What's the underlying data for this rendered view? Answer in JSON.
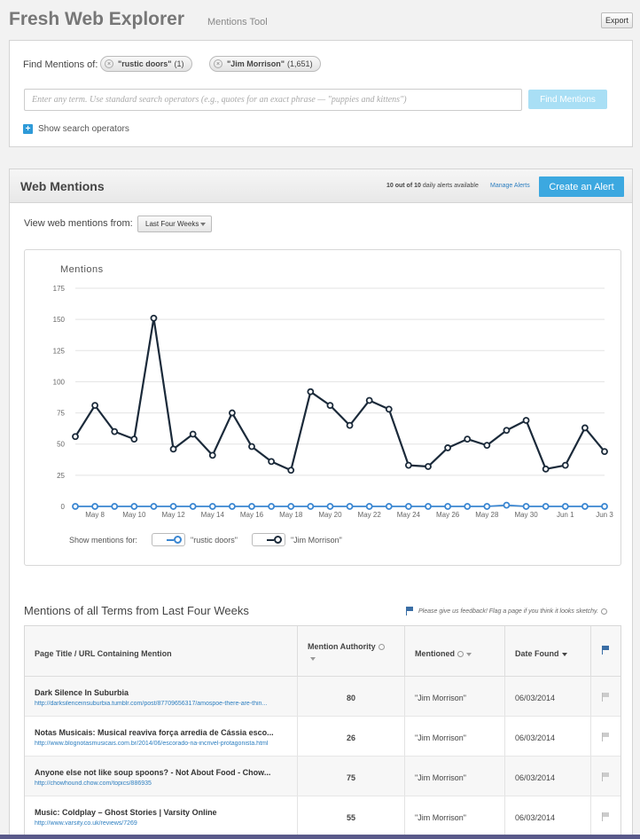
{
  "app": {
    "title": "Fresh Web Explorer",
    "subtitle": "Mentions Tool",
    "export_label": "Export"
  },
  "find": {
    "label": "Find Mentions of:",
    "chips": [
      {
        "term": "\"rustic doors\"",
        "count": "(1)"
      },
      {
        "term": "\"Jim Morrison\"",
        "count": "(1,651)"
      }
    ],
    "placeholder": "Enter any term. Use standard search operators (e.g., quotes for an exact phrase — \"puppies and kittens\")",
    "button_label": "Find Mentions",
    "operators_label": "Show search operators"
  },
  "web_mentions": {
    "title": "Web Mentions",
    "alerts_count": "10 out of 10",
    "alerts_suffix": " daily alerts available",
    "manage_label": "Manage Alerts",
    "create_label": "Create an Alert",
    "view_label": "View web mentions from:",
    "view_selected": "Last Four Weeks",
    "show_for_label": "Show mentions for:"
  },
  "colors": {
    "rustic": "#3a86d1",
    "jim": "#1b2a3a",
    "accent": "#3ca8e0"
  },
  "chart_data": {
    "type": "line",
    "title": "Mentions",
    "ylim": [
      0,
      175
    ],
    "yticks": [
      0,
      25,
      50,
      75,
      100,
      125,
      150,
      175
    ],
    "x_tick_labels": [
      "May 8",
      "May 10",
      "May 12",
      "May 14",
      "May 16",
      "May 18",
      "May 20",
      "May 22",
      "May 24",
      "May 26",
      "May 28",
      "May 30",
      "Jun 1",
      "Jun 3"
    ],
    "x": [
      "May 7",
      "May 8",
      "May 9",
      "May 10",
      "May 11",
      "May 12",
      "May 13",
      "May 14",
      "May 15",
      "May 16",
      "May 17",
      "May 18",
      "May 19",
      "May 20",
      "May 21",
      "May 22",
      "May 23",
      "May 24",
      "May 25",
      "May 26",
      "May 27",
      "May 28",
      "May 29",
      "May 30",
      "May 31",
      "Jun 1",
      "Jun 2",
      "Jun 3"
    ],
    "grid": true,
    "series": [
      {
        "name": "\"rustic doors\"",
        "values": [
          0,
          0,
          0,
          0,
          0,
          0,
          0,
          0,
          0,
          0,
          0,
          0,
          0,
          0,
          0,
          0,
          0,
          0,
          0,
          0,
          0,
          0,
          1,
          0,
          0,
          0,
          0,
          0
        ]
      },
      {
        "name": "\"Jim Morrison\"",
        "values": [
          56,
          81,
          60,
          54,
          151,
          46,
          58,
          41,
          75,
          48,
          36,
          29,
          92,
          81,
          65,
          85,
          78,
          33,
          32,
          47,
          54,
          49,
          61,
          69,
          30,
          33,
          63,
          44
        ]
      }
    ]
  },
  "mentions_list": {
    "title": "Mentions of all Terms from Last Four Weeks",
    "feedback": "Please give us feedback! Flag a page if you think it looks sketchy.",
    "columns": [
      "Page Title / URL Containing Mention",
      "Mention Authority",
      "Mentioned",
      "Date Found"
    ],
    "rows": [
      {
        "title": "Dark Silence In Suburbia",
        "url": "http://darksilenceinsuburbia.tumblr.com/post/87709656317/amospoe-there-are-thin...",
        "authority": "80",
        "mentioned": "\"Jim Morrison\"",
        "date": "06/03/2014"
      },
      {
        "title": "Notas Musicais: Musical reaviva força arredia de Cássia esco...",
        "url": "http://www.blognotasmusicais.com.br/2014/06/escorado-na-incrivel-protagonista.html",
        "authority": "26",
        "mentioned": "\"Jim Morrison\"",
        "date": "06/03/2014"
      },
      {
        "title": "Anyone else not like soup spoons? - Not About Food - Chow...",
        "url": "http://chowhound.chow.com/topics/886935",
        "authority": "75",
        "mentioned": "\"Jim Morrison\"",
        "date": "06/03/2014"
      },
      {
        "title": "Music: Coldplay – Ghost Stories | Varsity Online",
        "url": "http://www.varsity.co.uk/reviews/7269",
        "authority": "55",
        "mentioned": "\"Jim Morrison\"",
        "date": "06/03/2014"
      }
    ]
  }
}
